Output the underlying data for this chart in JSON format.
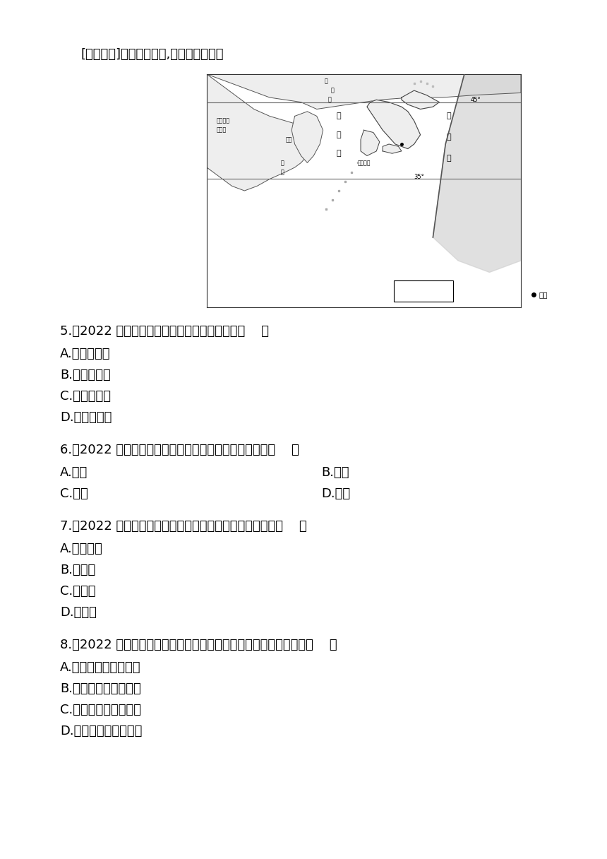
{
  "background_color": "#ffffff",
  "intro_text": "[区域认知]读日本示意图,完成下面小题。",
  "questions": [
    {
      "number": "5",
      "text": "（2022 福建漳州期末）日本主要地形类型是（    ）",
      "options": [
        "A.平原、山地",
        "B.山地、丘陵",
        "C.高原、盆地",
        "D.盆地、平原"
      ],
      "two_col": false
    },
    {
      "number": "6",
      "text": "（2022 福建漳州期末）下列国家与日本隔海相望的是（    ）",
      "options_two_col": [
        [
          "A.印度",
          "B.泰国"
        ],
        [
          "C.韩国",
          "D.法国"
        ]
      ],
      "two_col": true
    },
    {
      "number": "7",
      "text": "（2022 福建漳州期末）日本四大岛屿中，纬度最高的是（    ）",
      "options": [
        "A.北海道岛",
        "B.本州岛",
        "C.四国岛",
        "D.九州岛"
      ],
      "two_col": false
    },
    {
      "number": "8",
      "text": "（2022 福建漳州期末）下列有关日本地理环境的叙述，正确的是（    ）",
      "options": [
        "A.河流众多，源远流长",
        "B.纬度较高，终年寒冷",
        "C.太平洋东北部的岛国",
        "D.海岸线曲折，多良港"
      ],
      "two_col": false
    }
  ],
  "font_size_intro": 13,
  "font_size_question": 13,
  "font_size_option": 13
}
